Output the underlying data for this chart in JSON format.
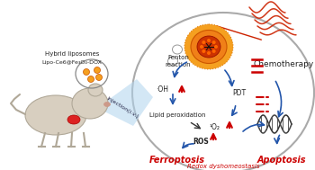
{
  "bg_color": "#ffffff",
  "redox_text": "Redox dyshomeostasis",
  "redox_color": "#cc0000",
  "chemotherapy_text": "Chemotherapy",
  "pdt_text": "PDT",
  "fenton_text": "Fenton\nreaction",
  "oh_text": "·OH",
  "lipid_text": "Lipid peroxidation",
  "o2_text": "¹O₂",
  "ros_text": "ROS",
  "ferroptosis_text": "Ferroptosis",
  "ferroptosis_color": "#cc0000",
  "apoptosis_text": "Apoptosis",
  "apoptosis_color": "#cc0000",
  "injection_text": "Injection(i.v.)",
  "hybrid_line1": "Hybrid liposomes",
  "hybrid_line2": "Lipo-Ce6@Fe₃O₄-DOX",
  "arrow_blue": "#2255aa",
  "up_arrow_color": "#cc0000",
  "red_dash_color": "#cc0000",
  "text_dark": "#222222",
  "beam_color": "#aaccee",
  "mouse_body_color": "#d8cfc0",
  "mouse_edge_color": "#b0a898",
  "np_outer": "#f5a020",
  "np_inner": "#cc3300",
  "np_ring": "#e87010",
  "bubble_color": "#aaaaaa",
  "light_color": "#cc2200",
  "dna_color": "#444444",
  "ellipse_color": "#aaaaaa"
}
